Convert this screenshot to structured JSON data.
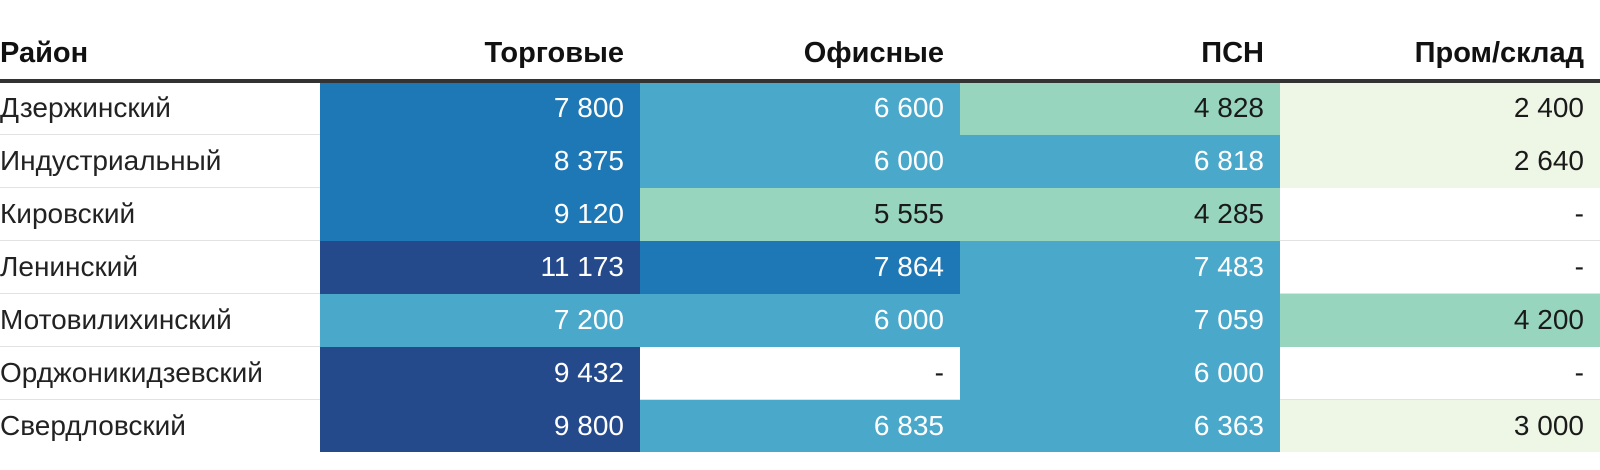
{
  "chart_data": {
    "type": "table",
    "columns": [
      "Район",
      "Торговые",
      "Офисные",
      "ПСН",
      "Пром/склад"
    ],
    "rows": [
      {
        "district": "Дзержинский",
        "values": [
          "7 800",
          "6 600",
          "4 828",
          "2 400"
        ],
        "numeric": [
          7800,
          6600,
          4828,
          2400
        ]
      },
      {
        "district": "Индустриальный",
        "values": [
          "8 375",
          "6 000",
          "6 818",
          "2 640"
        ],
        "numeric": [
          8375,
          6000,
          6818,
          2640
        ]
      },
      {
        "district": "Кировский",
        "values": [
          "9 120",
          "5 555",
          "4 285",
          "-"
        ],
        "numeric": [
          9120,
          5555,
          4285,
          null
        ]
      },
      {
        "district": "Ленинский",
        "values": [
          "11 173",
          "7 864",
          "7 483",
          "-"
        ],
        "numeric": [
          11173,
          7864,
          7483,
          null
        ]
      },
      {
        "district": "Мотовилихинский",
        "values": [
          "7 200",
          "6 000",
          "7 059",
          "4 200"
        ],
        "numeric": [
          7200,
          6000,
          7059,
          4200
        ]
      },
      {
        "district": "Орджоникидзевский",
        "values": [
          "9 432",
          "-",
          "6 000",
          "-"
        ],
        "numeric": [
          9432,
          null,
          6000,
          null
        ]
      },
      {
        "district": "Свердловский",
        "values": [
          "9 800",
          "6 835",
          "6 363",
          "3 000"
        ],
        "numeric": [
          9800,
          6835,
          6363,
          3000
        ]
      }
    ],
    "color_scale": [
      {
        "max": 3500,
        "color": "#eef7e6",
        "text": "#1a1a1a"
      },
      {
        "max": 5600,
        "color": "#97d5bf",
        "text": "#1a1a1a"
      },
      {
        "max": 7500,
        "color": "#4aa8cb",
        "text": "#ffffff"
      },
      {
        "max": 9200,
        "color": "#1f78b6",
        "text": "#ffffff"
      },
      {
        "max": 1000000,
        "color": "#254a8c",
        "text": "#ffffff"
      }
    ],
    "missing_color": "#ffffff"
  }
}
